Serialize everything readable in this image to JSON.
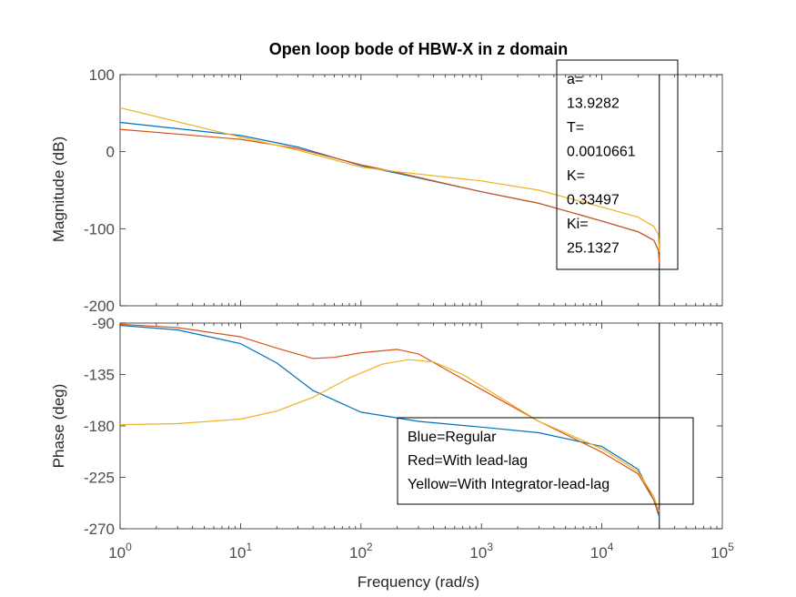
{
  "figure": {
    "title": "Open loop bode of HBW-X in z domain",
    "colors": {
      "blue": "#0072BD",
      "red": "#D95319",
      "yellow": "#EDB120",
      "axis": "#262626",
      "tick_text": "#4d4d4d"
    }
  },
  "annotations": {
    "params_box": [
      "a=",
      "13.9282",
      "T=",
      "0.0010661",
      "K=",
      "0.33497",
      "Ki=",
      "25.1327"
    ],
    "legend_box": [
      "Blue=Regular",
      "Red=With lead-lag",
      "Yellow=With Integrator-lead-lag"
    ]
  },
  "chart_data": [
    {
      "type": "line",
      "panel": "magnitude",
      "title": "Open loop bode of HBW-X in z domain",
      "xlabel": "",
      "ylabel": "Magnitude (dB)",
      "xscale": "log",
      "xlim": [
        1,
        100000
      ],
      "ylim": [
        -200,
        100
      ],
      "yticks": [
        100,
        0,
        -100,
        -200
      ],
      "nyquist_x": 30000,
      "series": [
        {
          "color": "blue",
          "x": [
            1,
            10,
            30,
            100,
            200,
            1000,
            3000,
            10000,
            20000,
            27000,
            29500,
            30000
          ],
          "y": [
            38,
            21,
            6,
            -18,
            -28,
            -52,
            -67,
            -90,
            -104,
            -115,
            -128,
            -145
          ]
        },
        {
          "color": "red",
          "x": [
            1,
            10,
            30,
            100,
            200,
            1000,
            3000,
            10000,
            20000,
            27000,
            29500,
            30000
          ],
          "y": [
            29,
            16,
            4,
            -17,
            -27,
            -52,
            -67,
            -90,
            -104,
            -115,
            -128,
            -145
          ]
        },
        {
          "color": "yellow",
          "x": [
            1,
            10,
            30,
            100,
            200,
            1000,
            3000,
            10000,
            20000,
            27000,
            29500,
            30000
          ],
          "y": [
            57,
            19,
            2,
            -20,
            -26,
            -38,
            -50,
            -72,
            -85,
            -97,
            -108,
            -130
          ]
        }
      ]
    },
    {
      "type": "line",
      "panel": "phase",
      "title": "",
      "xlabel": "Frequency  (rad/s)",
      "ylabel": "Phase (deg)",
      "xscale": "log",
      "xlim": [
        1,
        100000
      ],
      "xticks": [
        1,
        10,
        100,
        1000,
        10000,
        100000
      ],
      "ylim": [
        -270,
        -90
      ],
      "yticks": [
        -90,
        -135,
        -180,
        -225,
        -270
      ],
      "nyquist_x": 30000,
      "series": [
        {
          "color": "blue",
          "x": [
            1,
            3,
            10,
            20,
            40,
            100,
            300,
            1000,
            3000,
            10000,
            20000,
            27000,
            30000
          ],
          "y": [
            -92,
            -96,
            -108,
            -125,
            -149,
            -168,
            -176,
            -181,
            -186,
            -198,
            -218,
            -245,
            -260
          ]
        },
        {
          "color": "red",
          "x": [
            1,
            3,
            10,
            20,
            40,
            60,
            100,
            200,
            300,
            600,
            1000,
            3000,
            10000,
            20000,
            27000,
            30000
          ],
          "y": [
            -91,
            -94,
            -102,
            -112,
            -121,
            -120,
            -116,
            -113,
            -117,
            -135,
            -148,
            -176,
            -203,
            -222,
            -245,
            -258
          ]
        },
        {
          "color": "yellow",
          "x": [
            1,
            3,
            10,
            20,
            40,
            80,
            150,
            250,
            400,
            700,
            1000,
            3000,
            10000,
            20000,
            27000,
            30000
          ],
          "y": [
            -179,
            -178,
            -174,
            -167,
            -155,
            -138,
            -126,
            -122,
            -124,
            -135,
            -145,
            -176,
            -200,
            -220,
            -242,
            -255
          ]
        }
      ]
    }
  ]
}
